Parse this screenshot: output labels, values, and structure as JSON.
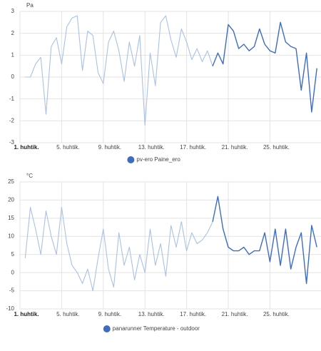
{
  "chart_data": [
    {
      "type": "line",
      "ylabel": "Pa",
      "ylim": [
        -3,
        3
      ],
      "yticks": [
        -3,
        -2,
        -1,
        0,
        1,
        2,
        3
      ],
      "xlim": [
        1,
        29.9
      ],
      "xticks": [
        {
          "value": 1,
          "label": "1. huhtik."
        },
        {
          "value": 5,
          "label": "5. huhtik."
        },
        {
          "value": 9,
          "label": "9. huhtik."
        },
        {
          "value": 13,
          "label": "13. huhtik."
        },
        {
          "value": 17,
          "label": "17. huhtik."
        },
        {
          "value": 21,
          "label": "21. huhtik."
        },
        {
          "value": 25,
          "label": "25. huhtik."
        }
      ],
      "grid": true,
      "faded_color": "#a9c1e8",
      "faded_until": 19.5,
      "x": [
        1.5,
        2,
        2.5,
        3,
        3.5,
        4,
        4.5,
        5,
        5.5,
        6,
        6.5,
        7,
        7.5,
        8,
        8.5,
        9,
        9.5,
        10,
        10.5,
        11,
        11.5,
        12,
        12.5,
        13,
        13.5,
        14,
        14.5,
        15,
        15.5,
        16,
        16.5,
        17,
        17.5,
        18,
        18.5,
        19,
        19.5,
        20,
        20.5,
        21,
        21.5,
        22,
        22.5,
        23,
        23.5,
        24,
        24.5,
        25,
        25.5,
        26,
        26.5,
        27,
        27.5,
        28,
        28.5,
        29,
        29.5
      ],
      "series": [
        {
          "name": "pv-ero Paine_ero",
          "color": "#3d6cc4",
          "values": [
            0,
            0,
            0.6,
            0.9,
            -1.7,
            1.4,
            1.8,
            0.6,
            2.3,
            2.7,
            2.8,
            0.3,
            2.1,
            1.9,
            0.2,
            -0.3,
            1.6,
            2.1,
            1.2,
            -0.2,
            1.6,
            0.5,
            1.9,
            -2.2,
            1.1,
            -0.4,
            2.5,
            2.8,
            1.7,
            0.9,
            2.2,
            1.6,
            0.8,
            1.3,
            0.7,
            1.2,
            0.5,
            1.1,
            0.6,
            2.4,
            2.1,
            1.3,
            1.5,
            1.2,
            1.4,
            2.2,
            1.5,
            1.2,
            1.1,
            2.5,
            1.6,
            1.4,
            1.3,
            -0.6,
            1.1,
            -1.6,
            0.4
          ]
        }
      ]
    },
    {
      "type": "line",
      "ylabel": "°C",
      "ylim": [
        -10,
        25
      ],
      "yticks": [
        -10,
        -5,
        0,
        5,
        10,
        15,
        20,
        25
      ],
      "xlim": [
        1,
        29.9
      ],
      "xticks": [
        {
          "value": 1,
          "label": "1. huhtik."
        },
        {
          "value": 5,
          "label": "5. huhtik."
        },
        {
          "value": 9,
          "label": "9. huhtik."
        },
        {
          "value": 13,
          "label": "13. huhtik."
        },
        {
          "value": 17,
          "label": "17. huhtik."
        },
        {
          "value": 21,
          "label": "21. huhtik."
        },
        {
          "value": 25,
          "label": "25. huhtik."
        }
      ],
      "grid": true,
      "faded_color": "#a9c1e8",
      "faded_until": 19.5,
      "x": [
        1.5,
        2,
        2.5,
        3,
        3.5,
        4,
        4.5,
        5,
        5.5,
        6,
        6.5,
        7,
        7.5,
        8,
        8.5,
        9,
        9.5,
        10,
        10.5,
        11,
        11.5,
        12,
        12.5,
        13,
        13.5,
        14,
        14.5,
        15,
        15.5,
        16,
        16.5,
        17,
        17.5,
        18,
        18.5,
        19,
        19.5,
        20,
        20.5,
        21,
        21.5,
        22,
        22.5,
        23,
        23.5,
        24,
        24.5,
        25,
        25.5,
        26,
        26.5,
        27,
        27.5,
        28,
        28.5,
        29,
        29.5
      ],
      "series": [
        {
          "name": "panarunner Temperature - outdoor",
          "color": "#3d6cc4",
          "values": [
            4,
            18,
            12,
            5,
            17,
            10,
            5,
            18,
            8,
            2,
            0,
            -3,
            1,
            -5,
            4,
            12,
            1,
            -4,
            11,
            2,
            7,
            -2,
            5,
            0,
            12,
            2,
            8,
            -1,
            13,
            7,
            14,
            6,
            11,
            8,
            9,
            11,
            14,
            21,
            12,
            7,
            6,
            6,
            7,
            5,
            6,
            6,
            11,
            3,
            12,
            2,
            12,
            1,
            7,
            11,
            -3,
            13,
            7
          ]
        }
      ]
    }
  ]
}
